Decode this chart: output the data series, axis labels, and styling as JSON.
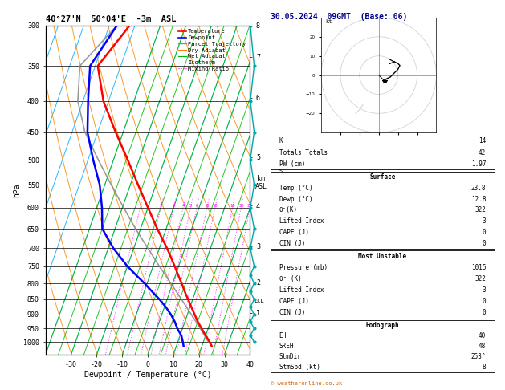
{
  "title_left": "40°27'N  50°04'E  -3m  ASL",
  "title_right": "30.05.2024  09GMT  (Base: 06)",
  "xlabel": "Dewpoint / Temperature (°C)",
  "ylabel_left": "hPa",
  "pressure_ticks": [
    300,
    350,
    400,
    450,
    500,
    550,
    600,
    650,
    700,
    750,
    800,
    850,
    900,
    950,
    1000
  ],
  "temp_ticks": [
    -30,
    -20,
    -10,
    0,
    10,
    20,
    30,
    40
  ],
  "mixing_ratio_vals": [
    1,
    2,
    3,
    4,
    5,
    6,
    8,
    10,
    16,
    20,
    25
  ],
  "mixing_ratio_labels": [
    "1",
    "2",
    "3",
    "4",
    "5",
    "6",
    "8",
    "10",
    "16",
    "20",
    "25"
  ],
  "km_ticks": [
    1,
    2,
    3,
    4,
    5,
    6,
    7,
    8
  ],
  "km_pressures": [
    895,
    795,
    695,
    595,
    495,
    395,
    338,
    300
  ],
  "stats": {
    "K": "14",
    "Totals Totals": "42",
    "PW (cm)": "1.97",
    "Surface_Temp": "23.8",
    "Surface_Dewp": "12.8",
    "Surface_thetaE": "322",
    "Surface_LI": "3",
    "Surface_CAPE": "0",
    "Surface_CIN": "0",
    "MU_Pressure": "1015",
    "MU_thetaE": "322",
    "MU_LI": "3",
    "MU_CAPE": "0",
    "MU_CIN": "0",
    "EH": "40",
    "SREH": "48",
    "StmDir": "253°",
    "StmSpd": "8"
  },
  "snd_p": [
    1015,
    1000,
    975,
    950,
    925,
    900,
    875,
    850,
    825,
    800,
    775,
    750,
    700,
    650,
    600,
    550,
    500,
    450,
    400,
    350,
    300
  ],
  "snd_T": [
    23.8,
    22.5,
    20.0,
    17.5,
    15.0,
    12.8,
    10.5,
    8.2,
    5.8,
    3.5,
    1.0,
    -1.5,
    -7.0,
    -13.5,
    -20.0,
    -27.0,
    -34.5,
    -43.0,
    -52.0,
    -59.0,
    -52.0
  ],
  "snd_Td": [
    12.8,
    12.0,
    10.5,
    8.0,
    6.0,
    3.5,
    0.5,
    -3.0,
    -7.0,
    -11.0,
    -15.5,
    -20.0,
    -28.0,
    -35.0,
    -38.0,
    -42.0,
    -48.0,
    -54.0,
    -58.0,
    -62.0,
    -57.0
  ],
  "parcel_T": [
    23.8,
    22.1,
    19.5,
    17.0,
    14.3,
    11.5,
    8.6,
    5.6,
    2.5,
    -0.7,
    -4.0,
    -7.5,
    -14.5,
    -22.0,
    -29.5,
    -37.5,
    -46.0,
    -55.0,
    -62.0,
    -66.0,
    -57.0
  ],
  "lcl_p": 855,
  "wind_p": [
    1000,
    975,
    950,
    925,
    900,
    875,
    850,
    825,
    800,
    775,
    750,
    700,
    650,
    600,
    550,
    500,
    450,
    400,
    350,
    300
  ],
  "wind_col": [
    "#00cc00",
    "#00cc00",
    "#00cc00",
    "#00cc00",
    "#00cc00",
    "#00cc00",
    "#00cc00",
    "#00cc00",
    "#00cc00",
    "#00cc00",
    "#00cc00",
    "#00cc00",
    "#00cc00",
    "#00cc00",
    "#00cc00",
    "#00cc00",
    "#00cc00",
    "#00cc00",
    "#00cc00",
    "#00cc00"
  ],
  "hodo_u": [
    4,
    6,
    8,
    10,
    11,
    10,
    8
  ],
  "hodo_v": [
    -2,
    -1,
    1,
    3,
    5,
    6,
    7
  ],
  "hodo_ghost_u": [
    -8,
    -10,
    -12
  ],
  "hodo_ghost_v": [
    -15,
    -18,
    -20
  ],
  "storm_u": [
    3
  ],
  "storm_v": [
    -3
  ],
  "isotherm_color": "#00aaff",
  "dry_adiabat_color": "#ff8800",
  "wet_adiabat_color": "#00bb00",
  "mixing_ratio_color": "#ff00ff",
  "temp_color": "#ff0000",
  "dewp_color": "#0000ff",
  "parcel_color": "#888888",
  "wind_seg_color": "#00cc00",
  "copyright": "© weatheronline.co.uk"
}
